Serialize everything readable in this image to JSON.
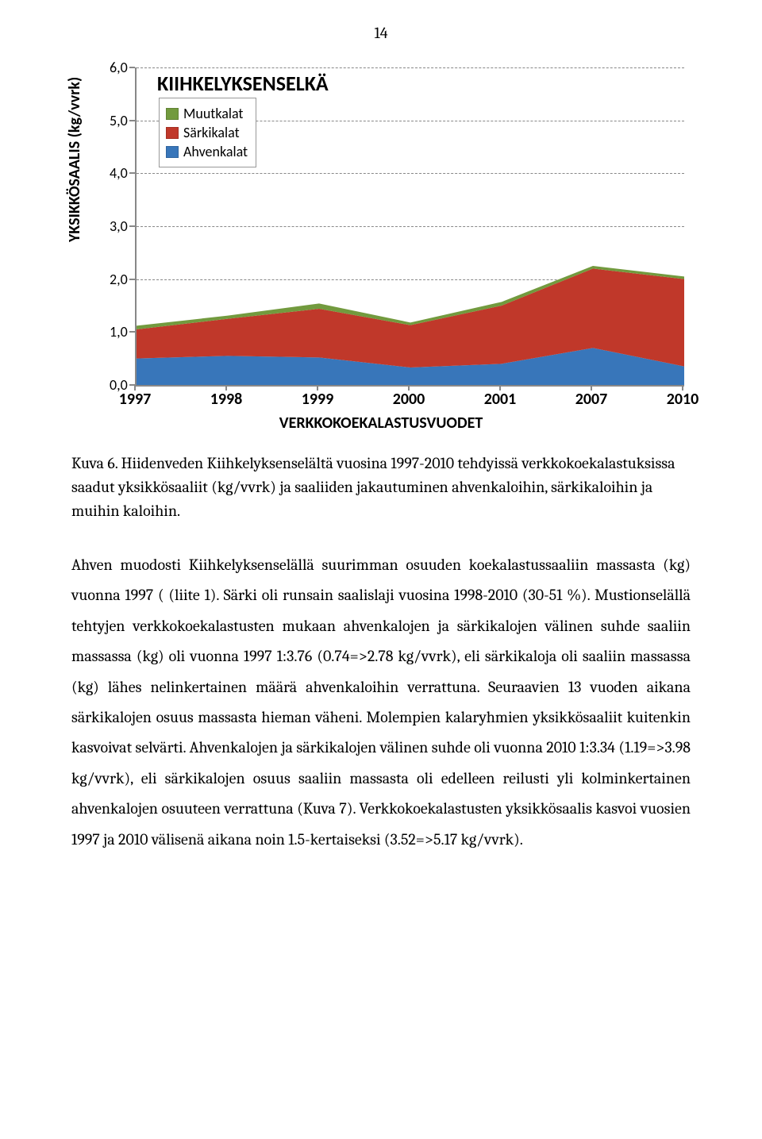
{
  "page_number": "14",
  "chart": {
    "type": "area",
    "title": "KIIHKELYKSENSELKÄ",
    "y_label": "YKSIKKÖSAALIS (kg/vvrk)",
    "x_label": "VERKKOKOEKALASTUSVUODET",
    "ylim": [
      0.0,
      6.0
    ],
    "ytick_step": 1.0,
    "ytick_labels": [
      "0,0",
      "1,0",
      "2,0",
      "3,0",
      "4,0",
      "5,0",
      "6,0"
    ],
    "x_categories": [
      "1997",
      "1998",
      "1999",
      "2000",
      "2001",
      "2007",
      "2010"
    ],
    "series": [
      {
        "name": "Ahvenkalat",
        "color": "#3876ba",
        "values": [
          0.5,
          0.55,
          0.52,
          0.33,
          0.4,
          0.7,
          0.35
        ]
      },
      {
        "name": "Särkikalat",
        "color": "#c0382a",
        "values": [
          0.55,
          0.7,
          0.92,
          0.8,
          1.1,
          1.5,
          1.65
        ]
      },
      {
        "name": "Muutkalat",
        "color": "#729a3e",
        "values": [
          0.07,
          0.06,
          0.1,
          0.05,
          0.07,
          0.05,
          0.05
        ]
      }
    ],
    "legend_order": [
      "Muutkalat",
      "Särkikalat",
      "Ahvenkalat"
    ],
    "legend_colors": {
      "Muutkalat": "#729a3e",
      "Särkikalat": "#c0382a",
      "Ahvenkalat": "#3876ba"
    },
    "grid_color": "#888888",
    "axis_color": "#888888",
    "background_color": "#ffffff"
  },
  "caption": "Kuva 6. Hiidenveden Kiihkelyksenselältä vuosina 1997-2010 tehdyissä verkkokoekalastuksissa saadut yksikkösaaliit (kg/vvrk) ja saaliiden jakautuminen ahvenkaloihin, särkikaloihin ja muihin kaloihin.",
  "body": "Ahven muodosti Kiihkelyksenselällä suurimman osuuden koekalastussaaliin massasta (kg) vuonna 1997 ( (liite 1). Särki oli runsain saalislaji vuosina 1998-2010 (30-51 %). Mustionselällä tehtyjen verkkokoekalastusten mukaan ahvenkalojen ja särkikalojen välinen suhde saaliin massassa (kg) oli vuonna 1997 1:3.76 (0.74=>2.78 kg/vvrk), eli särkikaloja oli saaliin massassa (kg) lähes nelinkertainen määrä ahvenkaloihin verrattuna. Seuraavien 13 vuoden aikana särkikalojen osuus massasta hieman väheni. Molempien kalaryhmien yksikkösaaliit kuitenkin kasvoivat selvärti. Ahvenkalojen ja särkikalojen välinen suhde oli vuonna 2010 1:3.34 (1.19=>3.98 kg/vvrk), eli särkikalojen osuus saaliin massasta oli edelleen reilusti yli kolminkertainen ahvenkalojen osuuteen verrattuna (Kuva 7). Verkkokoekalastusten yksikkösaalis kasvoi vuosien 1997 ja 2010 välisenä aikana noin 1.5-kertaiseksi (3.52=>5.17 kg/vvrk)."
}
